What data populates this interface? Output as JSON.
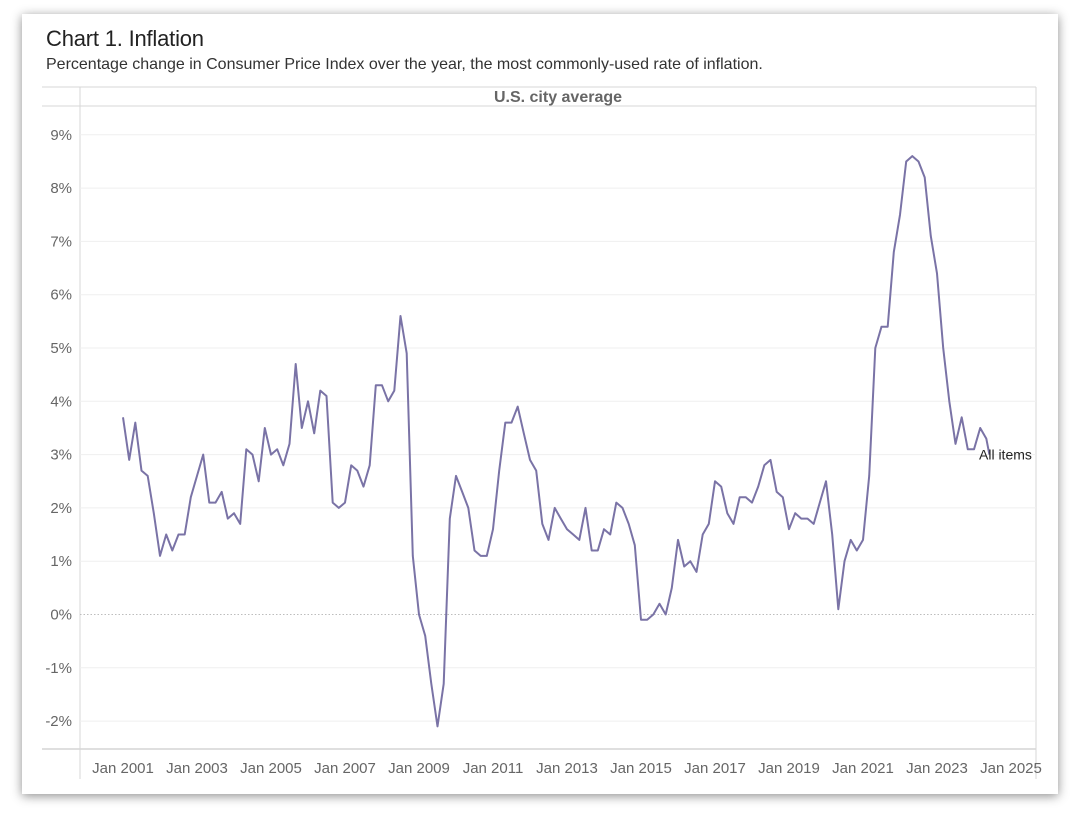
{
  "chart_title": "Chart 1. Inflation",
  "chart_subtitle": "Percentage change in Consumer Price Index over the year, the most commonly-used rate of inflation.",
  "chart_data": {
    "type": "line",
    "title": "Chart 1. Inflation",
    "subtitle": "Percentage change in Consumer Price Index over the year, the most commonly-used rate of inflation.",
    "panel_title": "U.S. city average",
    "xlabel": "",
    "ylabel": "",
    "ylim": [
      -2.5,
      9.0
    ],
    "y_ticks": [
      {
        "value": 9,
        "label": "9%"
      },
      {
        "value": 8,
        "label": "8%"
      },
      {
        "value": 7,
        "label": "7%"
      },
      {
        "value": 6,
        "label": "6%"
      },
      {
        "value": 5,
        "label": "5%"
      },
      {
        "value": 4,
        "label": "4%"
      },
      {
        "value": 3,
        "label": "3%"
      },
      {
        "value": 2,
        "label": "2%"
      },
      {
        "value": 1,
        "label": "1%"
      },
      {
        "value": 0,
        "label": "0%"
      },
      {
        "value": -1,
        "label": "-1%"
      },
      {
        "value": -2,
        "label": "-2%"
      }
    ],
    "x_ticks": [
      {
        "value": "2001-01",
        "label": "Jan 2001"
      },
      {
        "value": "2003-01",
        "label": "Jan 2003"
      },
      {
        "value": "2005-01",
        "label": "Jan 2005"
      },
      {
        "value": "2007-01",
        "label": "Jan 2007"
      },
      {
        "value": "2009-01",
        "label": "Jan 2009"
      },
      {
        "value": "2011-01",
        "label": "Jan 2011"
      },
      {
        "value": "2013-01",
        "label": "Jan 2013"
      },
      {
        "value": "2015-01",
        "label": "Jan 2015"
      },
      {
        "value": "2017-01",
        "label": "Jan 2017"
      },
      {
        "value": "2019-01",
        "label": "Jan 2019"
      },
      {
        "value": "2021-01",
        "label": "Jan 2021"
      },
      {
        "value": "2023-01",
        "label": "Jan 2023"
      },
      {
        "value": "2025-01",
        "label": "Jan 2025"
      }
    ],
    "grid": true,
    "series": [
      {
        "name": "All items",
        "color": "#7a73a6",
        "points": [
          [
            "2001-01",
            3.7
          ],
          [
            "2001-03",
            2.9
          ],
          [
            "2001-05",
            3.6
          ],
          [
            "2001-07",
            2.7
          ],
          [
            "2001-09",
            2.6
          ],
          [
            "2001-11",
            1.9
          ],
          [
            "2002-01",
            1.1
          ],
          [
            "2002-03",
            1.5
          ],
          [
            "2002-05",
            1.2
          ],
          [
            "2002-07",
            1.5
          ],
          [
            "2002-09",
            1.5
          ],
          [
            "2002-11",
            2.2
          ],
          [
            "2003-01",
            2.6
          ],
          [
            "2003-03",
            3.0
          ],
          [
            "2003-05",
            2.1
          ],
          [
            "2003-07",
            2.1
          ],
          [
            "2003-09",
            2.3
          ],
          [
            "2003-11",
            1.8
          ],
          [
            "2004-01",
            1.9
          ],
          [
            "2004-03",
            1.7
          ],
          [
            "2004-05",
            3.1
          ],
          [
            "2004-07",
            3.0
          ],
          [
            "2004-09",
            2.5
          ],
          [
            "2004-11",
            3.5
          ],
          [
            "2005-01",
            3.0
          ],
          [
            "2005-03",
            3.1
          ],
          [
            "2005-05",
            2.8
          ],
          [
            "2005-07",
            3.2
          ],
          [
            "2005-09",
            4.7
          ],
          [
            "2005-11",
            3.5
          ],
          [
            "2006-01",
            4.0
          ],
          [
            "2006-03",
            3.4
          ],
          [
            "2006-05",
            4.2
          ],
          [
            "2006-07",
            4.1
          ],
          [
            "2006-09",
            2.1
          ],
          [
            "2006-11",
            2.0
          ],
          [
            "2007-01",
            2.1
          ],
          [
            "2007-03",
            2.8
          ],
          [
            "2007-05",
            2.7
          ],
          [
            "2007-07",
            2.4
          ],
          [
            "2007-09",
            2.8
          ],
          [
            "2007-11",
            4.3
          ],
          [
            "2008-01",
            4.3
          ],
          [
            "2008-03",
            4.0
          ],
          [
            "2008-05",
            4.2
          ],
          [
            "2008-07",
            5.6
          ],
          [
            "2008-09",
            4.9
          ],
          [
            "2008-11",
            1.1
          ],
          [
            "2009-01",
            0.0
          ],
          [
            "2009-03",
            -0.4
          ],
          [
            "2009-05",
            -1.3
          ],
          [
            "2009-07",
            -2.1
          ],
          [
            "2009-09",
            -1.3
          ],
          [
            "2009-11",
            1.8
          ],
          [
            "2010-01",
            2.6
          ],
          [
            "2010-03",
            2.3
          ],
          [
            "2010-05",
            2.0
          ],
          [
            "2010-07",
            1.2
          ],
          [
            "2010-09",
            1.1
          ],
          [
            "2010-11",
            1.1
          ],
          [
            "2011-01",
            1.6
          ],
          [
            "2011-03",
            2.7
          ],
          [
            "2011-05",
            3.6
          ],
          [
            "2011-07",
            3.6
          ],
          [
            "2011-09",
            3.9
          ],
          [
            "2011-11",
            3.4
          ],
          [
            "2012-01",
            2.9
          ],
          [
            "2012-03",
            2.7
          ],
          [
            "2012-05",
            1.7
          ],
          [
            "2012-07",
            1.4
          ],
          [
            "2012-09",
            2.0
          ],
          [
            "2012-11",
            1.8
          ],
          [
            "2013-01",
            1.6
          ],
          [
            "2013-03",
            1.5
          ],
          [
            "2013-05",
            1.4
          ],
          [
            "2013-07",
            2.0
          ],
          [
            "2013-09",
            1.2
          ],
          [
            "2013-11",
            1.2
          ],
          [
            "2014-01",
            1.6
          ],
          [
            "2014-03",
            1.5
          ],
          [
            "2014-05",
            2.1
          ],
          [
            "2014-07",
            2.0
          ],
          [
            "2014-09",
            1.7
          ],
          [
            "2014-11",
            1.3
          ],
          [
            "2015-01",
            -0.1
          ],
          [
            "2015-03",
            -0.1
          ],
          [
            "2015-05",
            0.0
          ],
          [
            "2015-07",
            0.2
          ],
          [
            "2015-09",
            0.0
          ],
          [
            "2015-11",
            0.5
          ],
          [
            "2016-01",
            1.4
          ],
          [
            "2016-03",
            0.9
          ],
          [
            "2016-05",
            1.0
          ],
          [
            "2016-07",
            0.8
          ],
          [
            "2016-09",
            1.5
          ],
          [
            "2016-11",
            1.7
          ],
          [
            "2017-01",
            2.5
          ],
          [
            "2017-03",
            2.4
          ],
          [
            "2017-05",
            1.9
          ],
          [
            "2017-07",
            1.7
          ],
          [
            "2017-09",
            2.2
          ],
          [
            "2017-11",
            2.2
          ],
          [
            "2018-01",
            2.1
          ],
          [
            "2018-03",
            2.4
          ],
          [
            "2018-05",
            2.8
          ],
          [
            "2018-07",
            2.9
          ],
          [
            "2018-09",
            2.3
          ],
          [
            "2018-11",
            2.2
          ],
          [
            "2019-01",
            1.6
          ],
          [
            "2019-03",
            1.9
          ],
          [
            "2019-05",
            1.8
          ],
          [
            "2019-07",
            1.8
          ],
          [
            "2019-09",
            1.7
          ],
          [
            "2019-11",
            2.1
          ],
          [
            "2020-01",
            2.5
          ],
          [
            "2020-03",
            1.5
          ],
          [
            "2020-05",
            0.1
          ],
          [
            "2020-07",
            1.0
          ],
          [
            "2020-09",
            1.4
          ],
          [
            "2020-11",
            1.2
          ],
          [
            "2021-01",
            1.4
          ],
          [
            "2021-03",
            2.6
          ],
          [
            "2021-05",
            5.0
          ],
          [
            "2021-07",
            5.4
          ],
          [
            "2021-09",
            5.4
          ],
          [
            "2021-11",
            6.8
          ],
          [
            "2022-01",
            7.5
          ],
          [
            "2022-03",
            8.5
          ],
          [
            "2022-05",
            8.6
          ],
          [
            "2022-07",
            8.5
          ],
          [
            "2022-09",
            8.2
          ],
          [
            "2022-11",
            7.1
          ],
          [
            "2023-01",
            6.4
          ],
          [
            "2023-03",
            5.0
          ],
          [
            "2023-05",
            4.0
          ],
          [
            "2023-07",
            3.2
          ],
          [
            "2023-09",
            3.7
          ],
          [
            "2023-11",
            3.1
          ],
          [
            "2024-01",
            3.1
          ],
          [
            "2024-03",
            3.5
          ],
          [
            "2024-05",
            3.3
          ],
          [
            "2024-06",
            3.0
          ]
        ]
      }
    ]
  }
}
